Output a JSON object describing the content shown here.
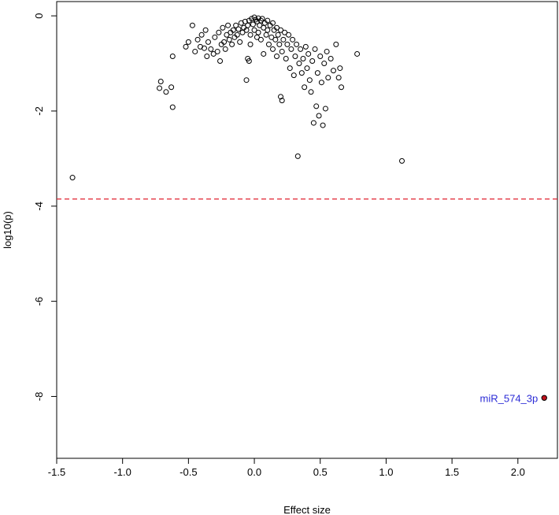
{
  "chart_data": {
    "type": "scatter",
    "xlabel": "Effect size",
    "ylabel": "log10(p)",
    "xlim": [
      -1.5,
      2.3
    ],
    "ylim": [
      -9.3,
      0.3
    ],
    "x_ticks": [
      -1.5,
      -1.0,
      -0.5,
      0.0,
      0.5,
      1.0,
      1.5,
      2.0
    ],
    "x_tick_labels": [
      "-1.5",
      "-1.0",
      "-0.5",
      "0.0",
      "0.5",
      "1.0",
      "1.5",
      "2.0"
    ],
    "y_ticks": [
      0,
      -2,
      -4,
      -6,
      -8
    ],
    "y_tick_labels": [
      "0",
      "-2",
      "-4",
      "-6",
      "-8"
    ],
    "threshold": {
      "y": -3.85,
      "style": "dashed",
      "color": "#e0202e"
    },
    "point_color": "#000000",
    "highlight_color": "#c0141e",
    "annotation_color": "#2b2bd6",
    "series": [
      {
        "values": [
          [
            -1.38,
            -3.4
          ],
          [
            -0.71,
            -1.38
          ],
          [
            -0.72,
            -1.52
          ],
          [
            -0.67,
            -1.6
          ],
          [
            -0.63,
            -1.5
          ],
          [
            -0.62,
            -1.92
          ],
          [
            -0.62,
            -0.85
          ],
          [
            -0.52,
            -0.65
          ],
          [
            -0.5,
            -0.55
          ],
          [
            -0.47,
            -0.2
          ],
          [
            -0.45,
            -0.75
          ],
          [
            -0.43,
            -0.5
          ],
          [
            -0.41,
            -0.65
          ],
          [
            -0.4,
            -0.4
          ],
          [
            -0.38,
            -0.68
          ],
          [
            -0.37,
            -0.3
          ],
          [
            -0.36,
            -0.85
          ],
          [
            -0.35,
            -0.55
          ],
          [
            -0.33,
            -0.7
          ],
          [
            -0.31,
            -0.8
          ],
          [
            -0.3,
            -0.45
          ],
          [
            -0.28,
            -0.75
          ],
          [
            -0.27,
            -0.35
          ],
          [
            -0.26,
            -0.95
          ],
          [
            -0.25,
            -0.6
          ],
          [
            -0.24,
            -0.25
          ],
          [
            -0.23,
            -0.55
          ],
          [
            -0.22,
            -0.7
          ],
          [
            -0.21,
            -0.4
          ],
          [
            -0.2,
            -0.2
          ],
          [
            -0.19,
            -0.5
          ],
          [
            -0.18,
            -0.35
          ],
          [
            -0.17,
            -0.6
          ],
          [
            -0.16,
            -0.3
          ],
          [
            -0.15,
            -0.45
          ],
          [
            -0.14,
            -0.2
          ],
          [
            -0.13,
            -0.4
          ],
          [
            -0.12,
            -0.28
          ],
          [
            -0.11,
            -0.55
          ],
          [
            -0.1,
            -0.15
          ],
          [
            -0.09,
            -0.35
          ],
          [
            -0.08,
            -0.25
          ],
          [
            -0.07,
            -0.12
          ],
          [
            -0.06,
            -0.3
          ],
          [
            -0.05,
            -0.2
          ],
          [
            -0.04,
            -0.1
          ],
          [
            -0.06,
            -1.35
          ],
          [
            -0.05,
            -0.9
          ],
          [
            -0.04,
            -0.95
          ],
          [
            -0.03,
            -0.4
          ],
          [
            -0.03,
            -0.6
          ],
          [
            -0.02,
            -0.06
          ],
          [
            -0.01,
            -0.18
          ],
          [
            0.0,
            -0.03
          ],
          [
            0.0,
            -0.3
          ],
          [
            0.01,
            -0.08
          ],
          [
            0.02,
            -0.12
          ],
          [
            0.02,
            -0.45
          ],
          [
            0.03,
            -0.05
          ],
          [
            0.03,
            -0.35
          ],
          [
            0.04,
            -0.2
          ],
          [
            0.05,
            -0.1
          ],
          [
            0.05,
            -0.5
          ],
          [
            0.06,
            -0.06
          ],
          [
            0.07,
            -0.25
          ],
          [
            0.07,
            -0.8
          ],
          [
            0.08,
            -0.15
          ],
          [
            0.09,
            -0.4
          ],
          [
            0.1,
            -0.1
          ],
          [
            0.1,
            -0.3
          ],
          [
            0.11,
            -0.6
          ],
          [
            0.12,
            -0.2
          ],
          [
            0.13,
            -0.45
          ],
          [
            0.14,
            -0.15
          ],
          [
            0.14,
            -0.7
          ],
          [
            0.15,
            -0.3
          ],
          [
            0.16,
            -0.5
          ],
          [
            0.17,
            -0.25
          ],
          [
            0.17,
            -0.85
          ],
          [
            0.18,
            -0.4
          ],
          [
            0.19,
            -0.6
          ],
          [
            0.2,
            -0.3
          ],
          [
            0.2,
            -1.7
          ],
          [
            0.21,
            -1.78
          ],
          [
            0.21,
            -0.75
          ],
          [
            0.22,
            -0.5
          ],
          [
            0.23,
            -0.35
          ],
          [
            0.24,
            -0.9
          ],
          [
            0.25,
            -0.6
          ],
          [
            0.26,
            -0.4
          ],
          [
            0.27,
            -1.1
          ],
          [
            0.28,
            -0.7
          ],
          [
            0.29,
            -0.5
          ],
          [
            0.3,
            -1.25
          ],
          [
            0.31,
            -0.85
          ],
          [
            0.32,
            -0.6
          ],
          [
            0.33,
            -2.95
          ],
          [
            0.34,
            -1.0
          ],
          [
            0.35,
            -0.7
          ],
          [
            0.36,
            -1.2
          ],
          [
            0.37,
            -0.9
          ],
          [
            0.38,
            -1.5
          ],
          [
            0.39,
            -0.65
          ],
          [
            0.4,
            -1.1
          ],
          [
            0.41,
            -0.8
          ],
          [
            0.42,
            -1.35
          ],
          [
            0.43,
            -1.6
          ],
          [
            0.44,
            -0.95
          ],
          [
            0.45,
            -2.25
          ],
          [
            0.46,
            -0.7
          ],
          [
            0.47,
            -1.9
          ],
          [
            0.48,
            -1.2
          ],
          [
            0.49,
            -2.1
          ],
          [
            0.5,
            -0.85
          ],
          [
            0.51,
            -1.4
          ],
          [
            0.52,
            -2.3
          ],
          [
            0.53,
            -1.0
          ],
          [
            0.54,
            -1.95
          ],
          [
            0.55,
            -0.75
          ],
          [
            0.56,
            -1.3
          ],
          [
            0.58,
            -0.9
          ],
          [
            0.6,
            -1.15
          ],
          [
            0.62,
            -0.6
          ],
          [
            0.64,
            -1.3
          ],
          [
            0.65,
            -1.1
          ],
          [
            0.66,
            -1.5
          ],
          [
            0.78,
            -0.8
          ],
          [
            1.12,
            -3.05
          ]
        ]
      },
      {
        "values": [
          [
            2.2,
            -8.03
          ]
        ],
        "label": "miR_574_3p"
      }
    ]
  }
}
